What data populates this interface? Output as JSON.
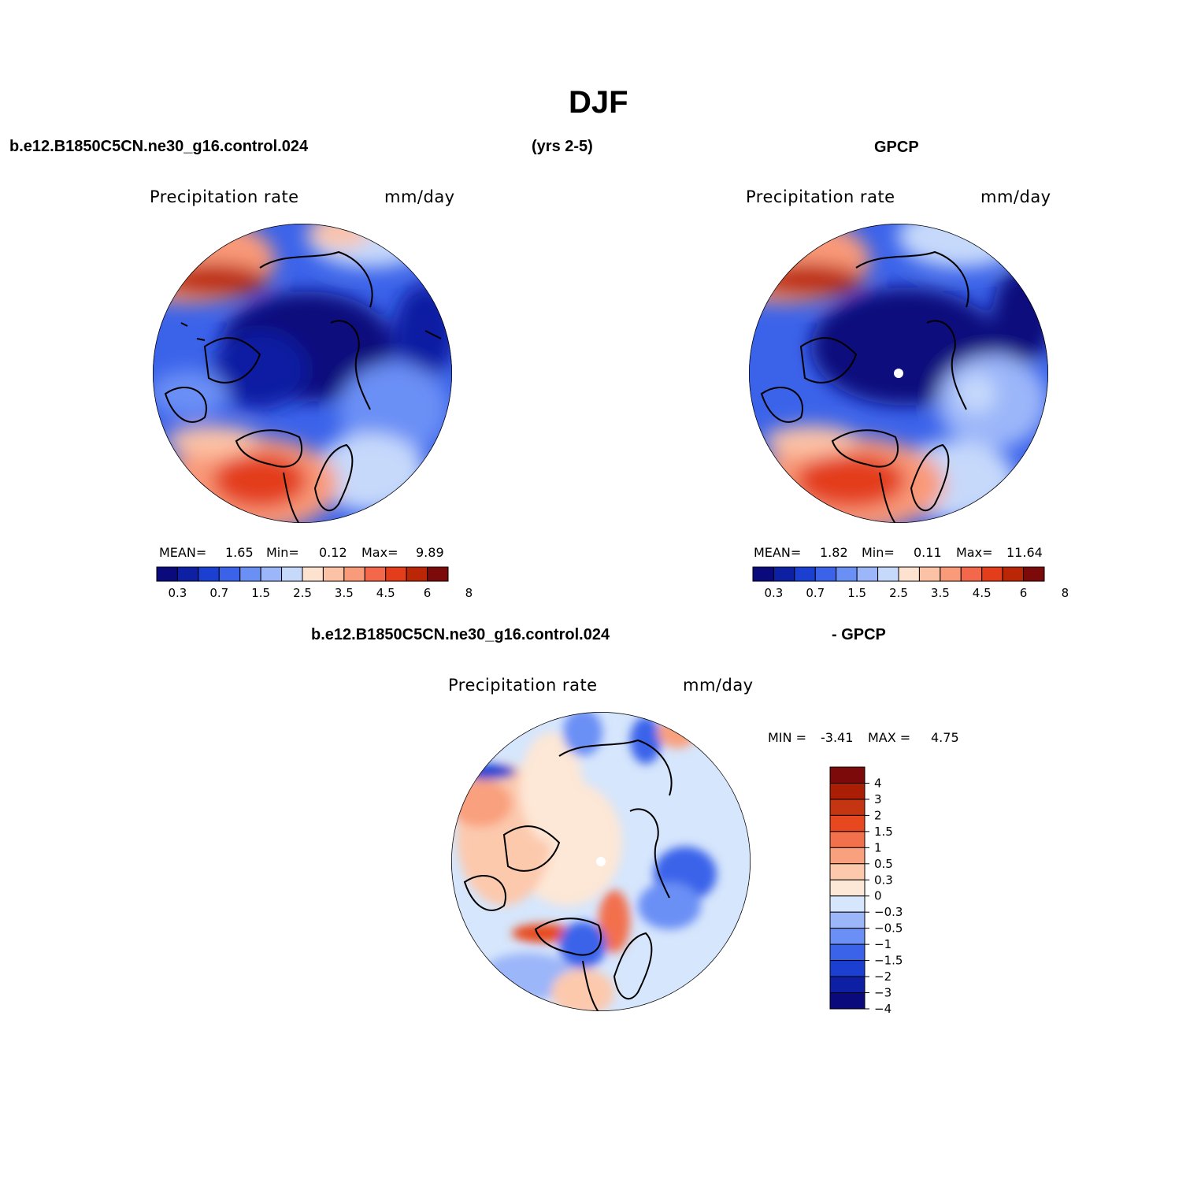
{
  "title": "DJF",
  "case_name": "b.e12.B1850C5CN.ne30_g16.control.024",
  "years": "(yrs 2-5)",
  "obs_name": "GPCP",
  "diff_suffix": "- GPCP",
  "colors": {
    "abs_scale": [
      "#0a0a7d",
      "#0d1fa3",
      "#1a3fd1",
      "#3b63ea",
      "#6a8ff5",
      "#9bb6f9",
      "#c6d9fb",
      "#fde2cf",
      "#fcc2a6",
      "#f99a79",
      "#f3684a",
      "#e33d1c",
      "#bb2606",
      "#7d0a0a"
    ],
    "diff_scale": [
      "#0a0a7d",
      "#0d1fa3",
      "#1a3fd1",
      "#3b63ea",
      "#6a8ff5",
      "#9bb6f9",
      "#d6e6fc",
      "#fde7d6",
      "#fcc9ad",
      "#f9a07e",
      "#f3704d",
      "#e8481f",
      "#c53512",
      "#aa1e06",
      "#7d0a0a"
    ]
  },
  "panels": [
    {
      "id": "model",
      "variable": "Precipitation rate",
      "units": "mm/day",
      "mean_label": "MEAN=",
      "mean_value": "1.65",
      "min_label": "Min=",
      "min_value": "0.12",
      "max_label": "Max=",
      "max_value": "9.89",
      "colorbar_ticks": [
        "0.3",
        "0.7",
        "1.5",
        "2.5",
        "3.5",
        "4.5",
        "6",
        "8"
      ]
    },
    {
      "id": "obs",
      "variable": "Precipitation rate",
      "units": "mm/day",
      "mean_label": "MEAN=",
      "mean_value": "1.82",
      "min_label": "Min=",
      "min_value": "0.11",
      "max_label": "Max=",
      "max_value": "11.64",
      "colorbar_ticks": [
        "0.3",
        "0.7",
        "1.5",
        "2.5",
        "3.5",
        "4.5",
        "6",
        "8"
      ]
    },
    {
      "id": "diff",
      "variable": "Precipitation rate",
      "units": "mm/day",
      "min_label": "MIN =",
      "min_value": "-3.41",
      "max_label": "MAX =",
      "max_value": "4.75",
      "colorbar_ticks": [
        "4",
        "3",
        "2",
        "1.5",
        "1",
        "0.5",
        "0.3",
        "0",
        "-0.3",
        "-0.5",
        "-1",
        "-1.5",
        "-2",
        "-3",
        "-4"
      ]
    }
  ]
}
